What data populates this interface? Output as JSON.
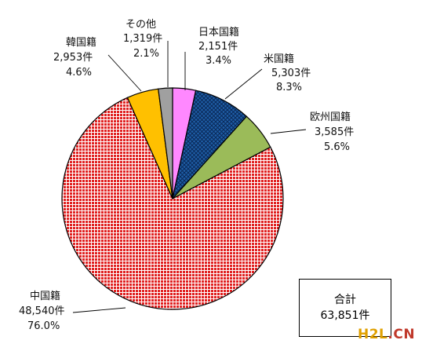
{
  "chart_data": {
    "type": "pie",
    "slices": [
      {
        "label": "日本国籍",
        "count": "2,151件",
        "percent": "3.4%",
        "value": 2151,
        "pct": 3.4,
        "color": "#ff88ff",
        "pattern": "solid"
      },
      {
        "label": "米国籍",
        "count": "5,303件",
        "percent": "8.3%",
        "value": 5303,
        "pct": 8.3,
        "color": "#1f5fa8",
        "pattern": "crosshatch"
      },
      {
        "label": "欧州国籍",
        "count": "3,585件",
        "percent": "5.6%",
        "value": 3585,
        "pct": 5.6,
        "color": "#9bbb59",
        "pattern": "solid"
      },
      {
        "label": "中国籍",
        "count": "48,540件",
        "percent": "76.0%",
        "value": 48540,
        "pct": 76.0,
        "color": "#e02020",
        "pattern": "grid"
      },
      {
        "label": "韓国籍",
        "count": "2,953件",
        "percent": "4.6%",
        "value": 2953,
        "pct": 4.6,
        "color": "#ffc000",
        "pattern": "solid"
      },
      {
        "label": "その他",
        "count": "1,319件",
        "percent": "2.1%",
        "value": 1319,
        "pct": 2.1,
        "color": "#a0a0a0",
        "pattern": "solid"
      }
    ],
    "total": {
      "label": "合計",
      "value": "63,851件"
    }
  },
  "watermark": {
    "part1": "H2L",
    "part2": ".CN"
  }
}
